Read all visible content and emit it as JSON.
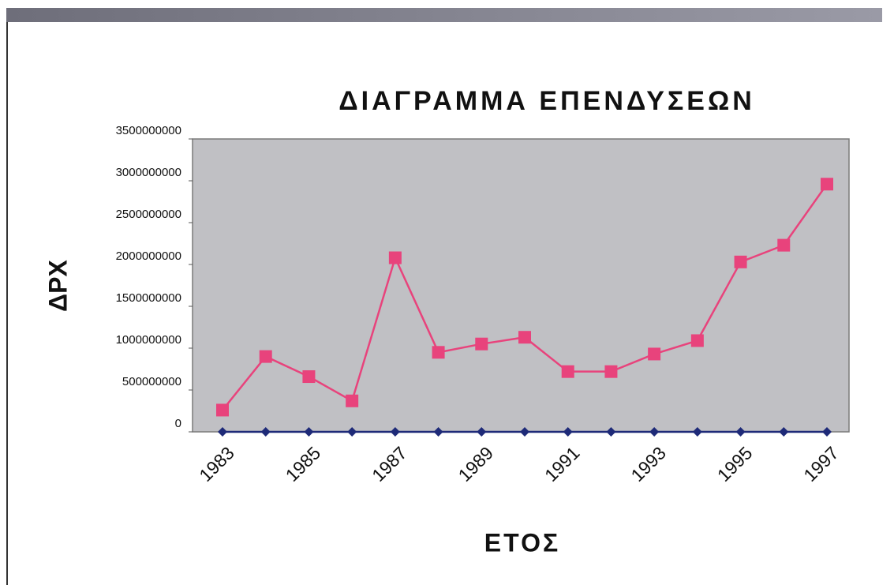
{
  "chart_data": {
    "type": "line",
    "title": "ΔΙΑΓΡΑΜΜΑ ΕΠΕΝΔΥΣΕΩΝ",
    "y_label": "ΔΡΧ",
    "x_label": "ΕΤΟΣ",
    "categories": [
      "1983",
      null,
      "1985",
      null,
      "1987",
      null,
      "1989",
      null,
      "1991",
      null,
      "1993",
      null,
      "1995",
      null,
      "1997"
    ],
    "series": [
      {
        "color": "#e8437c",
        "marker": "square",
        "values": [
          260000000,
          900000000,
          660000000,
          370000000,
          2080000000,
          950000000,
          1050000000,
          1130000000,
          720000000,
          720000000,
          930000000,
          1090000000,
          2030000000,
          2230000000,
          2960000000
        ]
      },
      {
        "color": "#1e2a78",
        "marker": "diamond",
        "values": [
          0,
          0,
          0,
          0,
          0,
          0,
          0,
          0,
          0,
          0,
          0,
          0,
          0,
          0,
          0
        ]
      }
    ],
    "ylim": [
      0,
      3500000000
    ],
    "yticks": [
      0,
      500000000,
      1000000000,
      1500000000,
      2000000000,
      2500000000,
      3000000000,
      3500000000
    ],
    "grid": false
  }
}
